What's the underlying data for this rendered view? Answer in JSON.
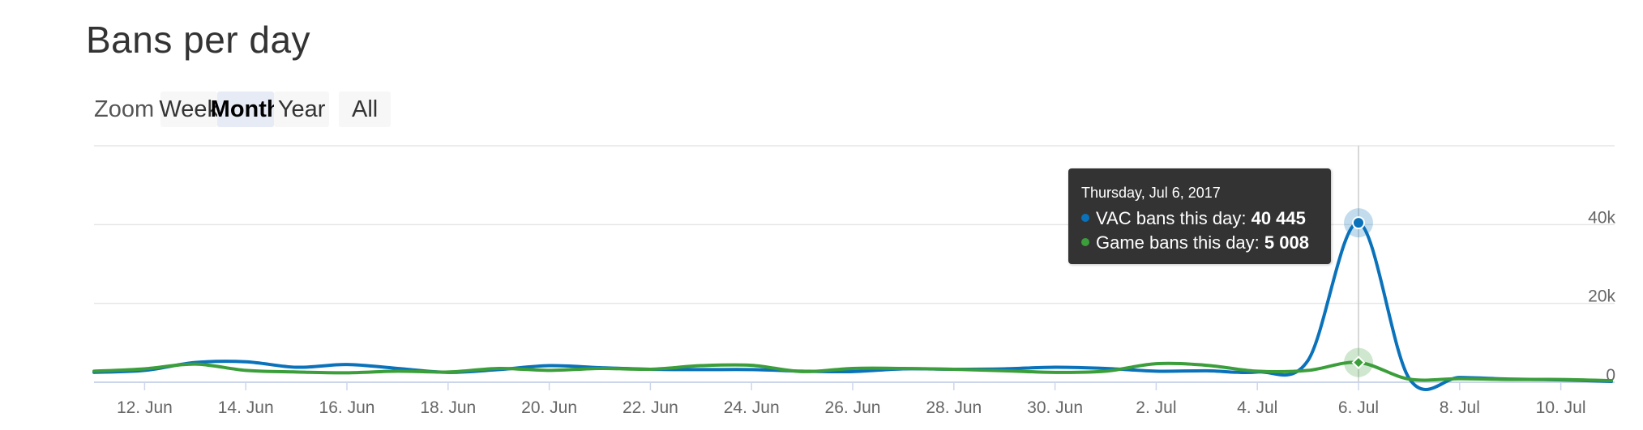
{
  "title": "Bans per day",
  "zoom": {
    "label": "Zoom",
    "buttons": [
      "Week",
      "Month",
      "Year",
      "All"
    ],
    "selected": "Month"
  },
  "tooltip": {
    "date": "Thursday, Jul 6, 2017",
    "rows": [
      {
        "label": "VAC bans this day:",
        "value": "40 445",
        "color": "#0a72ba"
      },
      {
        "label": "Game bans this day:",
        "value": "5 008",
        "color": "#3b9e3b"
      }
    ]
  },
  "colors": {
    "vac": "#0a72ba",
    "game": "#3b9e3b",
    "grid": "#e6e6e6",
    "axis": "#ccd6eb",
    "crosshair": "#cccccc"
  },
  "chart_data": {
    "type": "line",
    "title": "Bans per day",
    "x_ticks": [
      "12. Jun",
      "14. Jun",
      "16. Jun",
      "18. Jun",
      "20. Jun",
      "22. Jun",
      "24. Jun",
      "26. Jun",
      "28. Jun",
      "30. Jun",
      "2. Jul",
      "4. Jul",
      "6. Jul",
      "8. Jul",
      "10. Jul"
    ],
    "y_ticks": [
      "0",
      "20k",
      "40k"
    ],
    "ylim": [
      0,
      60000
    ],
    "grid": true,
    "x": [
      "2017-06-11",
      "2017-06-12",
      "2017-06-13",
      "2017-06-14",
      "2017-06-15",
      "2017-06-16",
      "2017-06-17",
      "2017-06-18",
      "2017-06-19",
      "2017-06-20",
      "2017-06-21",
      "2017-06-22",
      "2017-06-23",
      "2017-06-24",
      "2017-06-25",
      "2017-06-26",
      "2017-06-27",
      "2017-06-28",
      "2017-06-29",
      "2017-06-30",
      "2017-07-01",
      "2017-07-02",
      "2017-07-03",
      "2017-07-04",
      "2017-07-05",
      "2017-07-06",
      "2017-07-07",
      "2017-07-08",
      "2017-07-09",
      "2017-07-10",
      "2017-07-11"
    ],
    "series": [
      {
        "name": "VAC bans",
        "color": "#0a72ba",
        "values": [
          2500,
          3000,
          5000,
          5200,
          3800,
          4500,
          3500,
          2500,
          3200,
          4200,
          3700,
          3300,
          3200,
          3200,
          2800,
          2700,
          3400,
          3300,
          3400,
          3800,
          3500,
          2800,
          2900,
          2600,
          5500,
          40445,
          1000,
          1200,
          800,
          600,
          200
        ]
      },
      {
        "name": "Game bans",
        "color": "#3b9e3b",
        "values": [
          2800,
          3400,
          4600,
          3000,
          2600,
          2400,
          2800,
          2600,
          3500,
          3000,
          3500,
          3300,
          4200,
          4300,
          2700,
          3500,
          3500,
          3300,
          2900,
          2500,
          2800,
          4700,
          4300,
          2800,
          3000,
          5008,
          800,
          900,
          700,
          700,
          400
        ]
      }
    ]
  }
}
